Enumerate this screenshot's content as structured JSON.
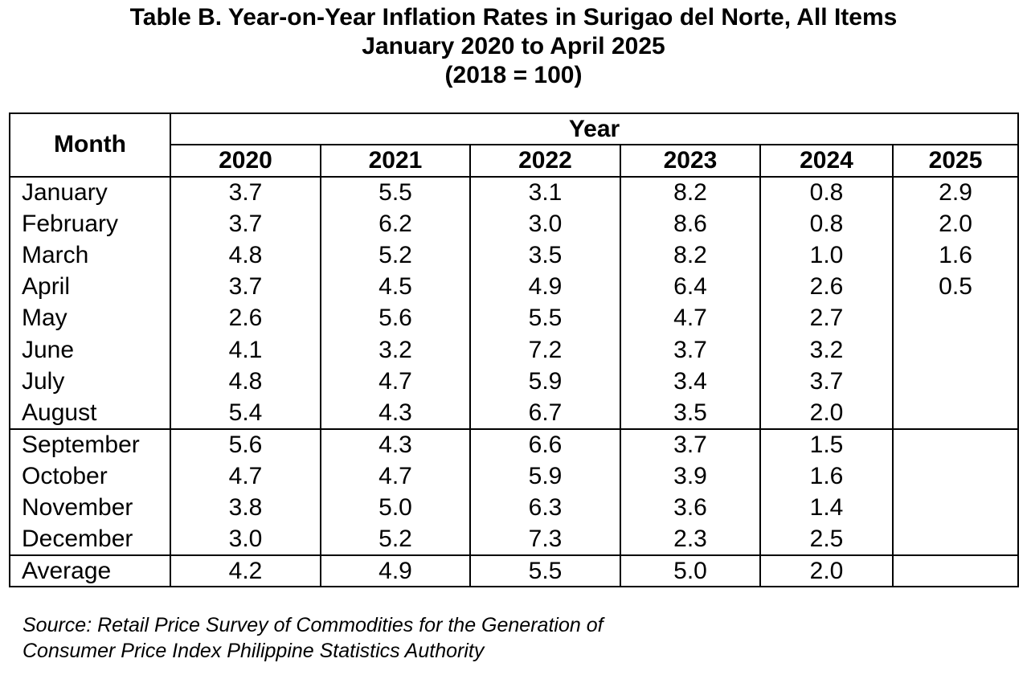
{
  "title": {
    "line1": "Table B. Year-on-Year Inflation Rates in Surigao del Norte, All Items",
    "line2": "January 2020 to April 2025",
    "line3": "(2018 = 100)"
  },
  "header": {
    "month_label": "Month",
    "year_label": "Year",
    "years": [
      "2020",
      "2021",
      "2022",
      "2023",
      "2024",
      "2025"
    ]
  },
  "chart_data": {
    "type": "table",
    "title": "Table B. Year-on-Year Inflation Rates in Surigao del Norte, All Items",
    "columns": [
      "Month",
      "2020",
      "2021",
      "2022",
      "2023",
      "2024",
      "2025"
    ],
    "rows": [
      {
        "month": "January",
        "values": [
          "3.7",
          "5.5",
          "3.1",
          "8.2",
          "0.8",
          "2.9"
        ]
      },
      {
        "month": "February",
        "values": [
          "3.7",
          "6.2",
          "3.0",
          "8.6",
          "0.8",
          "2.0"
        ]
      },
      {
        "month": "March",
        "values": [
          "4.8",
          "5.2",
          "3.5",
          "8.2",
          "1.0",
          "1.6"
        ]
      },
      {
        "month": "April",
        "values": [
          "3.7",
          "4.5",
          "4.9",
          "6.4",
          "2.6",
          "0.5"
        ]
      },
      {
        "month": "May",
        "values": [
          "2.6",
          "5.6",
          "5.5",
          "4.7",
          "2.7",
          ""
        ]
      },
      {
        "month": "June",
        "values": [
          "4.1",
          "3.2",
          "7.2",
          "3.7",
          "3.2",
          ""
        ]
      },
      {
        "month": "July",
        "values": [
          "4.8",
          "4.7",
          "5.9",
          "3.4",
          "3.7",
          ""
        ]
      },
      {
        "month": "August",
        "values": [
          "5.4",
          "4.3",
          "6.7",
          "3.5",
          "2.0",
          ""
        ]
      },
      {
        "month": "September",
        "values": [
          "5.6",
          "4.3",
          "6.6",
          "3.7",
          "1.5",
          ""
        ]
      },
      {
        "month": "October",
        "values": [
          "4.7",
          "4.7",
          "5.9",
          "3.9",
          "1.6",
          ""
        ]
      },
      {
        "month": "November",
        "values": [
          "3.8",
          "5.0",
          "6.3",
          "3.6",
          "1.4",
          ""
        ]
      },
      {
        "month": "December",
        "values": [
          "3.0",
          "5.2",
          "7.3",
          "2.3",
          "2.5",
          ""
        ]
      },
      {
        "month": "Average",
        "values": [
          "4.2",
          "4.9",
          "5.5",
          "5.0",
          "2.0",
          ""
        ]
      }
    ]
  },
  "source": {
    "line1": "Source: Retail Price Survey of Commodities for the Generation of",
    "line2": "Consumer Price Index Philippine Statistics Authority"
  }
}
